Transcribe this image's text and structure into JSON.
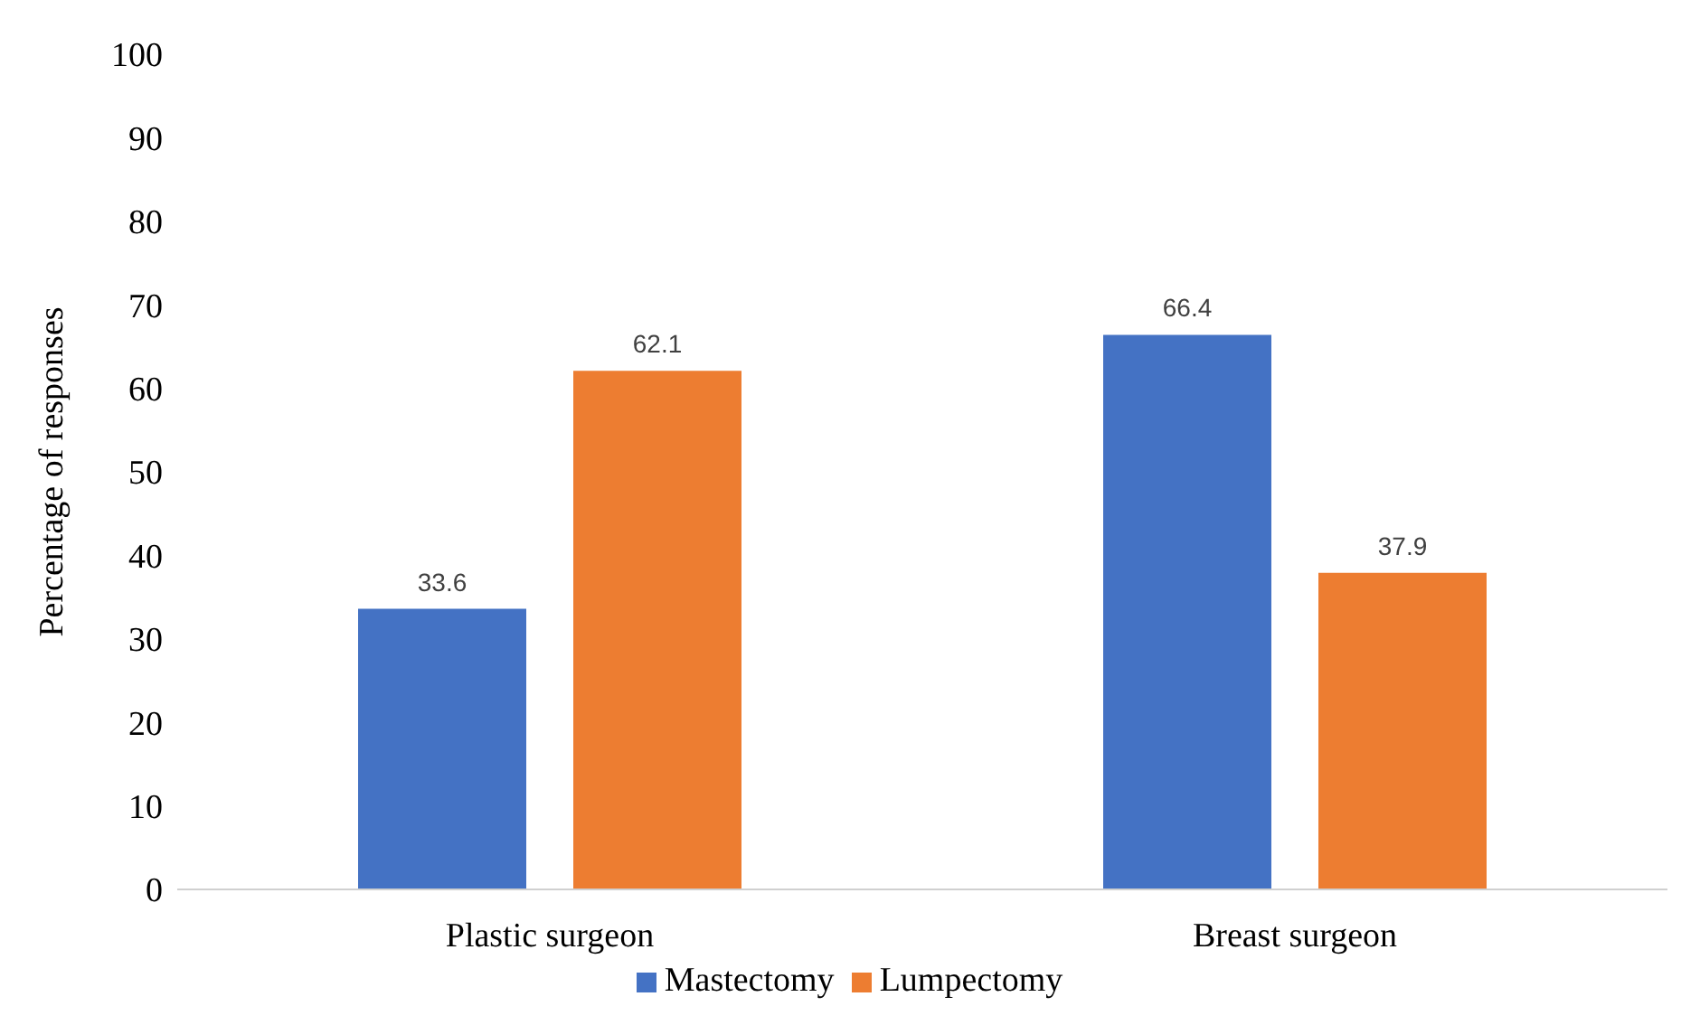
{
  "chart_data": {
    "type": "bar",
    "ylabel": "Percentage of responses",
    "categories": [
      "Plastic surgeon",
      "Breast surgeon"
    ],
    "series": [
      {
        "name": "Mastectomy",
        "color": "#4472c4",
        "values": [
          33.6,
          66.4
        ]
      },
      {
        "name": "Lumpectomy",
        "color": "#ed7d31",
        "values": [
          62.1,
          37.9
        ]
      }
    ],
    "ylim": [
      0,
      100
    ],
    "yticks": [
      0,
      10,
      20,
      30,
      40,
      50,
      60,
      70,
      80,
      90,
      100
    ],
    "grid": false,
    "legend": "bottom",
    "data_labels": true
  }
}
